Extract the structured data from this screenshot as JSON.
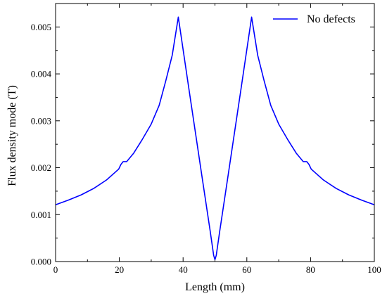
{
  "chart_data": {
    "type": "line",
    "xlabel": "Length (mm)",
    "ylabel": "Flux density mode (T)",
    "xlim": [
      0,
      100
    ],
    "ylim": [
      0,
      0.0055
    ],
    "xticks": [
      0,
      20,
      40,
      60,
      80,
      100
    ],
    "xtick_labels": [
      "0",
      "20",
      "40",
      "60",
      "80",
      "100"
    ],
    "yticks": [
      0,
      0.001,
      0.002,
      0.003,
      0.004,
      0.005
    ],
    "ytick_labels": [
      "0.000",
      "0.001",
      "0.002",
      "0.003",
      "0.004",
      "0.005"
    ],
    "grid": false,
    "legend_position": "top-right",
    "series": [
      {
        "name": "No defects",
        "color": "#0000ff",
        "x": [
          0,
          4,
          8,
          12,
          16,
          19.8,
          20.5,
          21.2,
          22.3,
          24.5,
          27,
          30,
          32.5,
          34.6,
          36.6,
          38.5,
          42,
          46,
          48.5,
          49.6,
          50,
          50.4,
          51.5,
          54,
          58,
          61.5,
          63.4,
          65.4,
          67.5,
          70,
          73,
          75.5,
          77.7,
          78.8,
          79.5,
          80.2,
          84,
          88,
          92,
          96,
          100
        ],
        "y": [
          0.00121,
          0.00131,
          0.00142,
          0.00156,
          0.00174,
          0.00197,
          0.00207,
          0.00213,
          0.00213,
          0.00231,
          0.00258,
          0.00293,
          0.00333,
          0.00386,
          0.0044,
          0.00521,
          0.0036,
          0.00178,
          0.00065,
          0.00013,
          4e-05,
          0.00013,
          0.00065,
          0.00178,
          0.0036,
          0.00521,
          0.0044,
          0.00386,
          0.00333,
          0.00293,
          0.00258,
          0.00231,
          0.00213,
          0.00213,
          0.00207,
          0.00197,
          0.00174,
          0.00156,
          0.00142,
          0.00131,
          0.00121
        ]
      }
    ]
  }
}
